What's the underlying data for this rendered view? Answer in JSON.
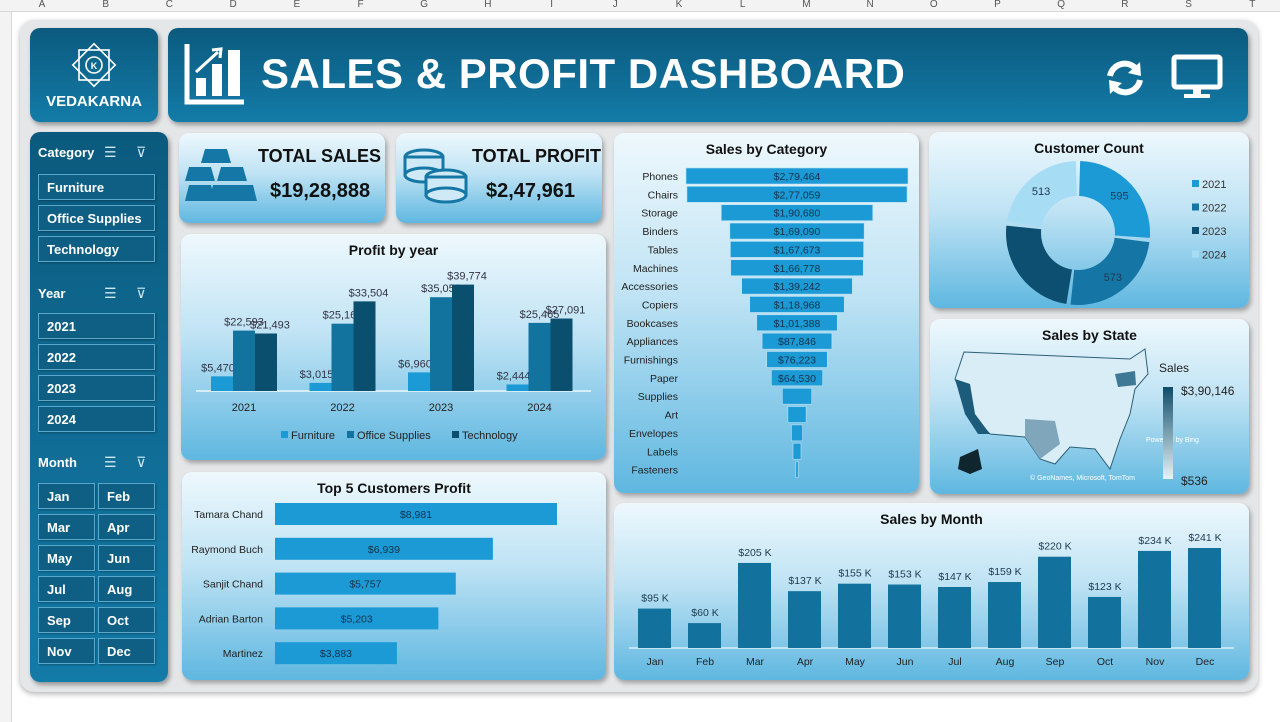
{
  "sheet": {
    "columns": [
      "A",
      "B",
      "C",
      "D",
      "E",
      "F",
      "G",
      "H",
      "I",
      "J",
      "K",
      "L",
      "M",
      "N",
      "O",
      "P",
      "Q",
      "R",
      "S",
      "T"
    ]
  },
  "brand": {
    "name": "VEDAKARNA",
    "logo_letter": "K"
  },
  "header": {
    "title": "SALES & PROFIT DASHBOARD",
    "icons": [
      "bar-chart-growth-icon",
      "refresh-icon",
      "monitor-icon"
    ]
  },
  "slicers": {
    "category": {
      "title": "Category",
      "items": [
        "Furniture",
        "Office Supplies",
        "Technology"
      ]
    },
    "year": {
      "title": "Year",
      "items": [
        "2021",
        "2022",
        "2023",
        "2024"
      ]
    },
    "month": {
      "title": "Month",
      "items": [
        "Jan",
        "Feb",
        "Mar",
        "Apr",
        "May",
        "Jun",
        "Jul",
        "Aug",
        "Sep",
        "Oct",
        "Nov",
        "Dec"
      ]
    }
  },
  "kpis": {
    "total_sales": {
      "label": "TOTAL SALES",
      "value": "$19,28,888",
      "icon": "gold-bars-icon"
    },
    "total_profit": {
      "label": "TOTAL PROFIT",
      "value": "$2,47,961",
      "icon": "coins-icon"
    }
  },
  "colors": {
    "furniture": "#1b9ad6",
    "office_supplies": "#13739f",
    "technology": "#0b4f6e",
    "accent": "#0b5a7e"
  },
  "map": {
    "title": "Sales by State",
    "legend_title": "Sales",
    "max_label": "$3,90,146",
    "min_label": "$536",
    "attribution1": "Powered by Bing",
    "attribution2": "© GeoNames, Microsoft, TomTom"
  },
  "chart_data": [
    {
      "type": "bar",
      "title": "Profit by year",
      "categories": [
        "2021",
        "2022",
        "2023",
        "2024"
      ],
      "series": [
        {
          "name": "Furniture",
          "values": [
            5470,
            3015,
            6960,
            2444
          ],
          "labels": [
            "$5,470",
            "$3,015",
            "$6,960",
            "$2,444"
          ]
        },
        {
          "name": "Office Supplies",
          "values": [
            22593,
            25167,
            35053,
            25465
          ],
          "labels": [
            "$22,593",
            "$25,167",
            "$35,053",
            "$25,465"
          ]
        },
        {
          "name": "Technology",
          "values": [
            21493,
            33504,
            39774,
            27091
          ],
          "labels": [
            "$21,493",
            "$33,504",
            "$39,774",
            "$27,091"
          ]
        }
      ],
      "legend": "bottom"
    },
    {
      "type": "bar",
      "orientation": "funnel",
      "title": "Sales by Category",
      "categories": [
        "Phones",
        "Chairs",
        "Storage",
        "Binders",
        "Tables",
        "Machines",
        "Accessories",
        "Copiers",
        "Bookcases",
        "Appliances",
        "Furnishings",
        "Paper",
        "Supplies",
        "Art",
        "Envelopes",
        "Labels",
        "Fasteners"
      ],
      "values": [
        279464,
        277059,
        190680,
        169090,
        167673,
        166778,
        139242,
        118968,
        101388,
        87846,
        76223,
        64530,
        37000,
        23000,
        14000,
        10000,
        3000
      ],
      "labels": [
        "$2,79,464",
        "$2,77,059",
        "$1,90,680",
        "$1,69,090",
        "$1,67,673",
        "$1,66,778",
        "$1,39,242",
        "$1,18,968",
        "$1,01,388",
        "$87,846",
        "$76,223",
        "$64,530",
        "",
        "",
        "",
        "",
        ""
      ]
    },
    {
      "type": "pie",
      "title": "Customer Count",
      "donut": true,
      "categories": [
        "2021",
        "2022",
        "2023",
        "2024"
      ],
      "values": [
        595,
        573,
        560,
        513
      ],
      "labels": [
        "595",
        "573",
        "",
        "513"
      ],
      "colors": [
        "#1b9ad6",
        "#1576a6",
        "#0d4f70",
        "#a6dcf4"
      ],
      "legend": "right"
    },
    {
      "type": "bar",
      "orientation": "horizontal",
      "title": "Top 5 Customers Profit",
      "categories": [
        "Tamara Chand",
        "Raymond Buch",
        "Sanjit Chand",
        "Adrian Barton",
        "Martinez"
      ],
      "values": [
        8981,
        6939,
        5757,
        5203,
        3883
      ],
      "labels": [
        "$8,981",
        "$6,939",
        "$5,757",
        "$5,203",
        "$3,883"
      ]
    },
    {
      "type": "bar",
      "title": "Sales by Month",
      "categories": [
        "Jan",
        "Feb",
        "Mar",
        "Apr",
        "May",
        "Jun",
        "Jul",
        "Aug",
        "Sep",
        "Oct",
        "Nov",
        "Dec"
      ],
      "values": [
        95,
        60,
        205,
        137,
        155,
        153,
        147,
        159,
        220,
        123,
        234,
        241
      ],
      "unit": "$K",
      "labels": [
        "$95 K",
        "$60 K",
        "$205 K",
        "$137 K",
        "$155 K",
        "$153 K",
        "$147 K",
        "$159 K",
        "$220 K",
        "$123 K",
        "$234 K",
        "$241 K"
      ]
    }
  ]
}
